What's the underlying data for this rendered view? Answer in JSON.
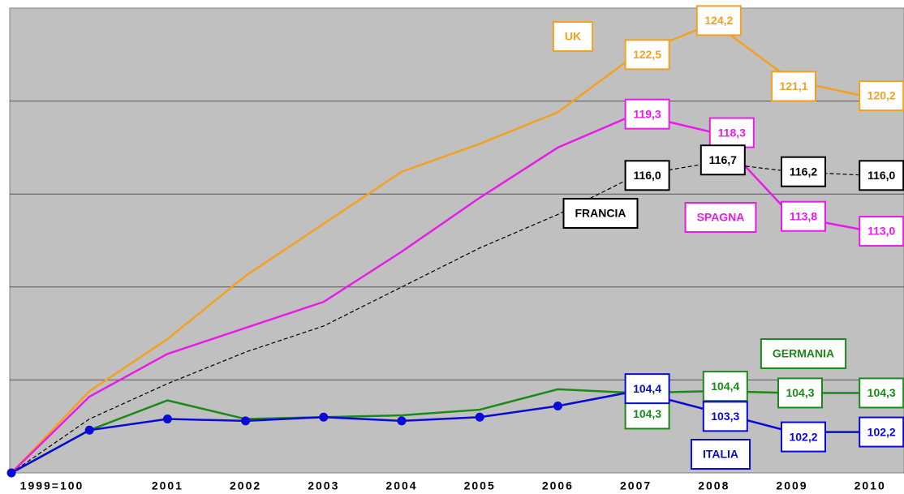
{
  "chart_data": {
    "type": "line",
    "categories": [
      "1999=100",
      null,
      "2001",
      "2002",
      "2003",
      "2004",
      "2005",
      "2006",
      "2007",
      "2008",
      "2009",
      "2010"
    ],
    "ylim": [
      100,
      125
    ],
    "yticks": [
      105,
      110,
      115,
      120
    ],
    "grid": true,
    "series": [
      {
        "name": "UK",
        "color": "#f5a020",
        "dashed": false,
        "markers": false,
        "values": [
          100,
          104.4,
          107.2,
          110.6,
          113.4,
          116.2,
          117.7,
          119.4,
          122.5,
          124.2,
          121.1,
          120.2
        ],
        "value_labels": [
          null,
          null,
          null,
          null,
          null,
          null,
          null,
          null,
          "122,5",
          "124,2",
          "121,1",
          "120,2"
        ]
      },
      {
        "name": "SPAGNA",
        "color": "#e81ce8",
        "dashed": false,
        "markers": false,
        "values": [
          100,
          104.1,
          106.4,
          107.8,
          109.2,
          111.9,
          114.8,
          117.5,
          119.3,
          118.3,
          113.8,
          113.0
        ],
        "value_labels": [
          null,
          null,
          null,
          null,
          null,
          null,
          null,
          null,
          "119,3",
          "118,3",
          "113,8",
          "113,0"
        ]
      },
      {
        "name": "FRANCIA",
        "color": "#000000",
        "dashed": true,
        "markers": false,
        "values": [
          100,
          102.9,
          104.8,
          106.5,
          107.9,
          110.0,
          112.1,
          113.9,
          116.0,
          116.7,
          116.2,
          116.0
        ],
        "value_labels": [
          null,
          null,
          null,
          null,
          null,
          null,
          null,
          null,
          "116,0",
          "116,7",
          "116,2",
          "116,0"
        ]
      },
      {
        "name": "GERMANIA",
        "color": "#1a8a1a",
        "dashed": false,
        "markers": false,
        "values": [
          100,
          102.3,
          103.9,
          102.9,
          103.0,
          103.1,
          103.4,
          104.5,
          104.3,
          104.4,
          104.3,
          104.3
        ],
        "value_labels": [
          null,
          null,
          null,
          null,
          null,
          null,
          null,
          null,
          "104,3",
          "104,4",
          "104,3",
          "104,3"
        ]
      },
      {
        "name": "ITALIA",
        "color": "#0a0ad8",
        "dashed": false,
        "markers": true,
        "values": [
          100,
          102.3,
          102.9,
          102.8,
          103.0,
          102.8,
          103.0,
          103.6,
          104.4,
          103.3,
          102.2,
          102.2
        ],
        "value_labels": [
          null,
          null,
          null,
          null,
          null,
          null,
          null,
          null,
          "104,4",
          "103,3",
          "102,2",
          "102,2"
        ]
      }
    ]
  }
}
